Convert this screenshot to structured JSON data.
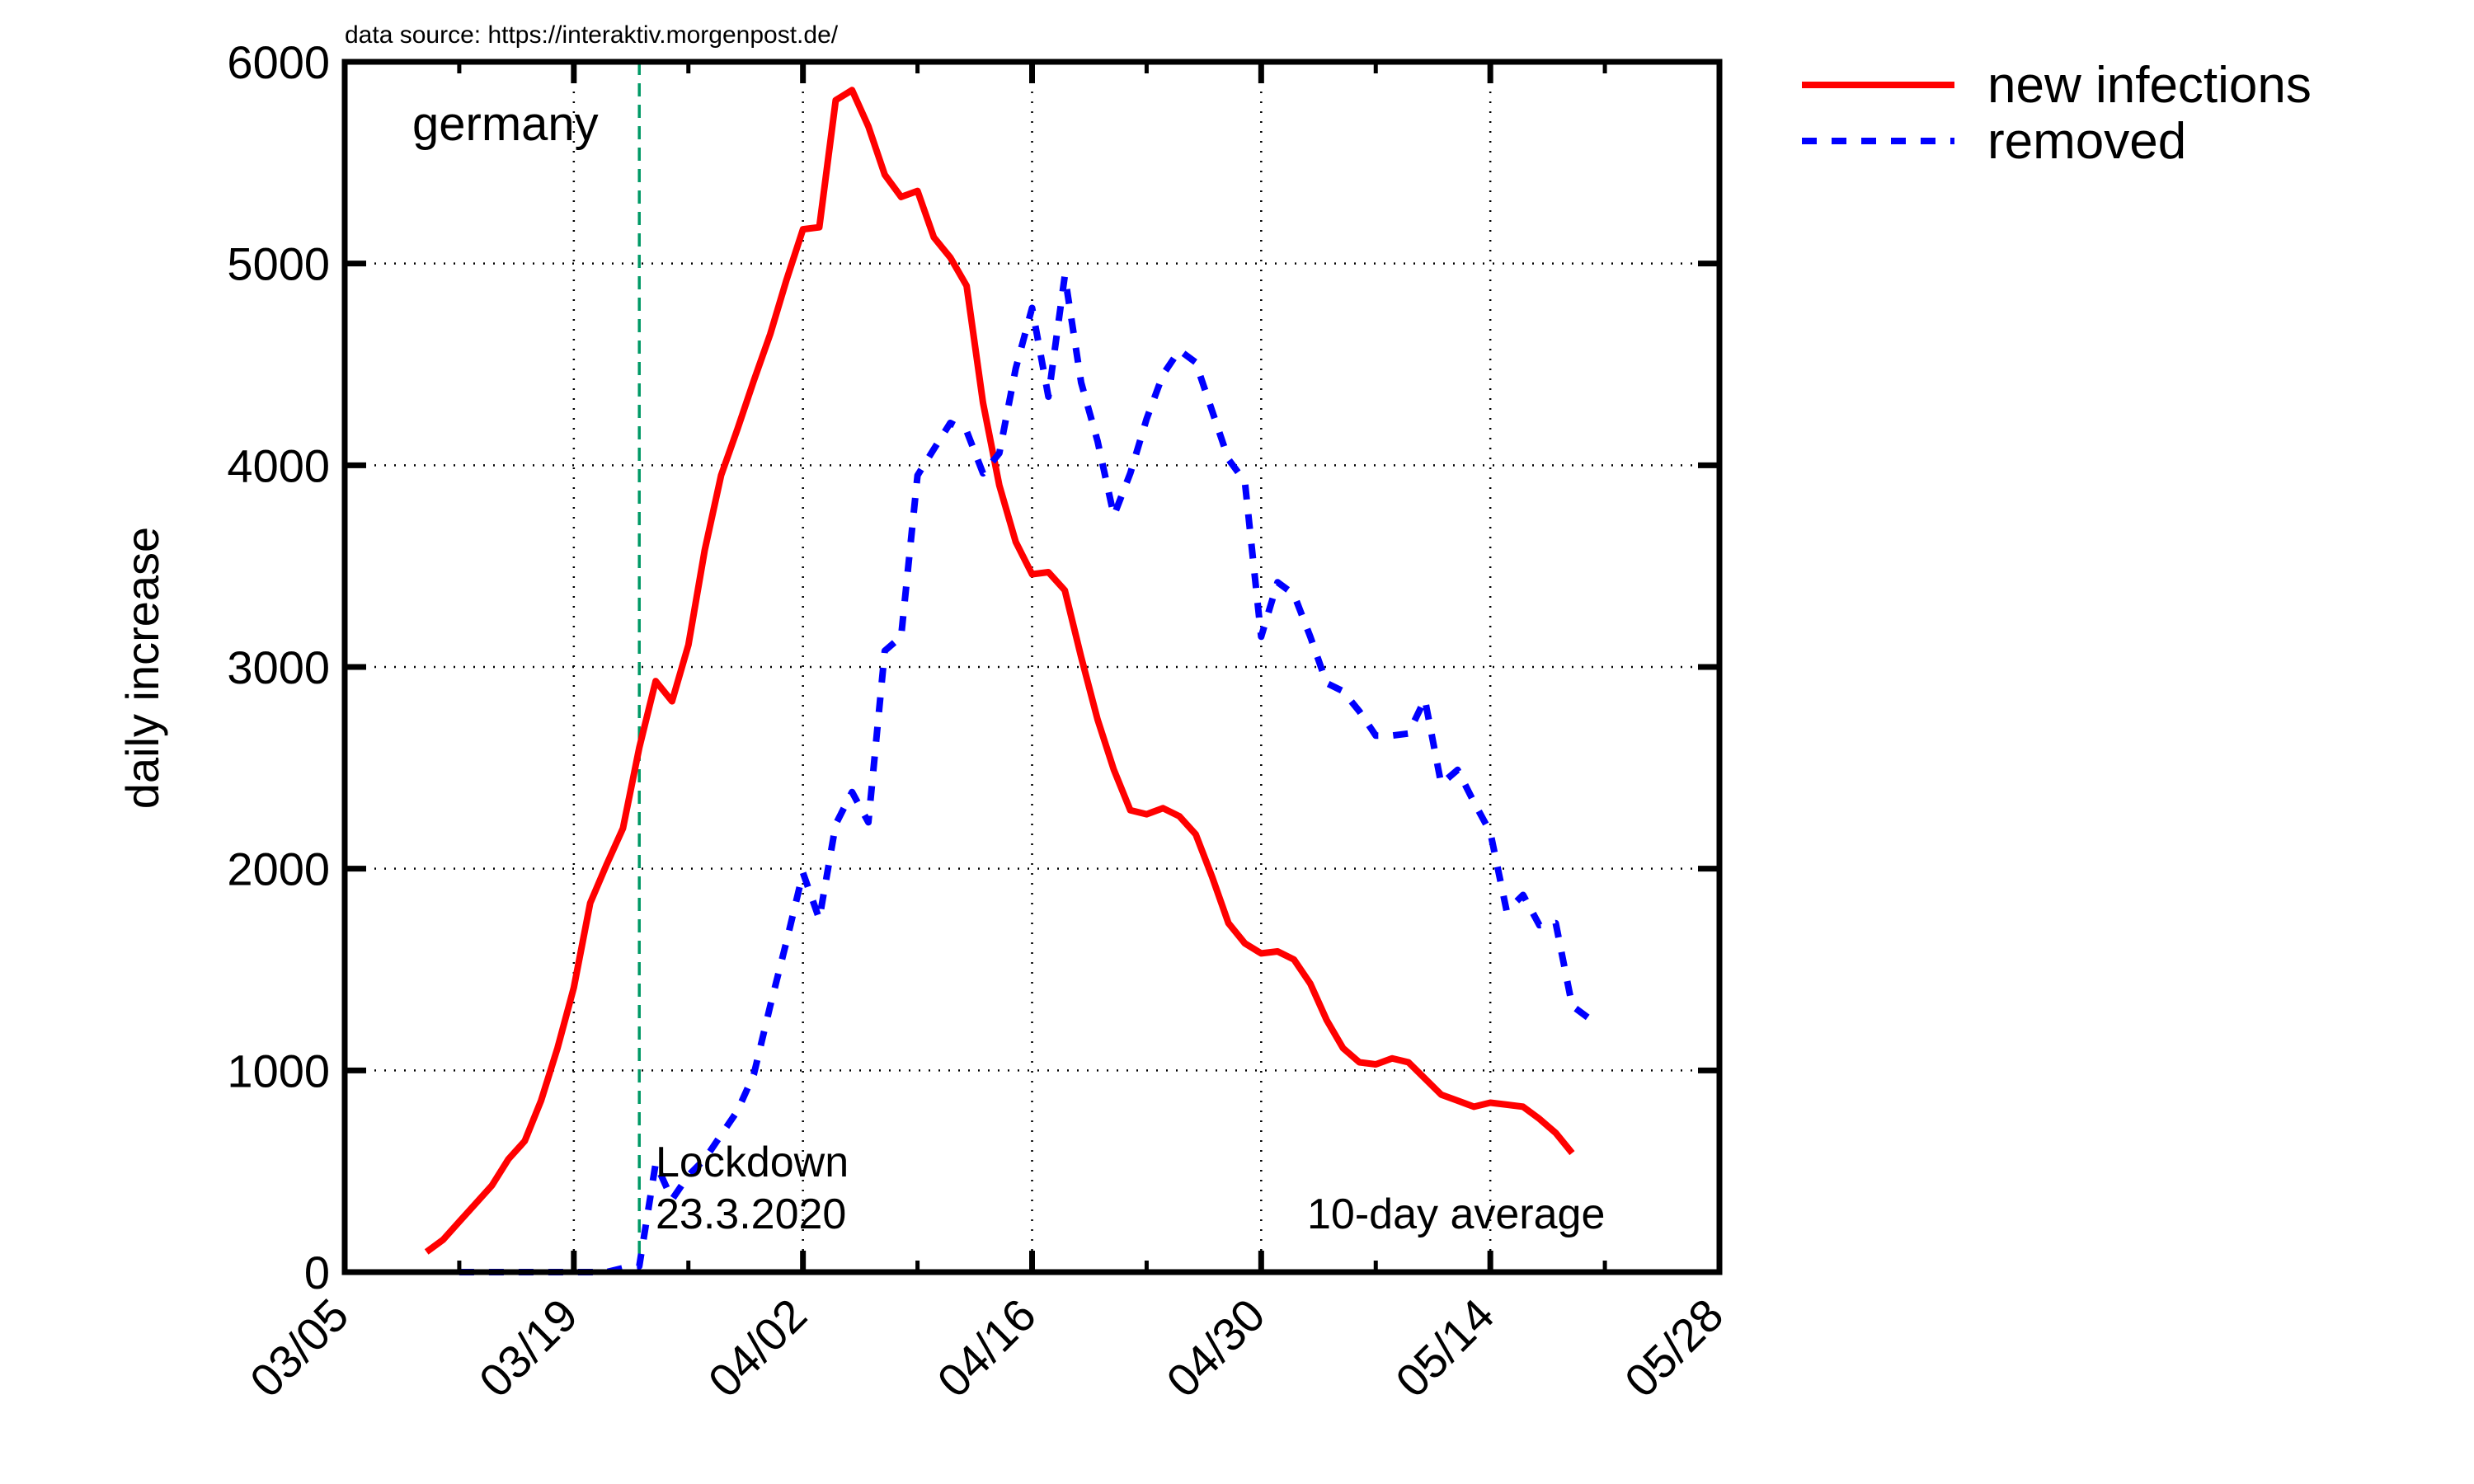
{
  "chart_data": {
    "type": "line",
    "title": "",
    "source_note": "data source: https://interaktiv.morgenpost.de/",
    "region_label": "germany",
    "average_note": "10-day average",
    "xlabel": "",
    "ylabel": "daily increase",
    "xlim": [
      "2020-03-05",
      "2020-05-28"
    ],
    "ylim": [
      0,
      6000
    ],
    "xticks": [
      "03/05",
      "03/19",
      "04/02",
      "04/16",
      "04/30",
      "05/14",
      "05/28"
    ],
    "yticks": [
      0,
      1000,
      2000,
      3000,
      4000,
      5000,
      6000
    ],
    "grid": true,
    "legend_position": "right, outside plot, top",
    "lockdown": {
      "date": "2020-03-23",
      "label_line1": "Lockdown",
      "label_line2": "23.3.2020",
      "color": "#009966"
    },
    "series": [
      {
        "name": "new infections",
        "color": "#ff0000",
        "style": "solid",
        "points": [
          [
            "2020-03-10",
            100
          ],
          [
            "2020-03-11",
            160
          ],
          [
            "2020-03-12",
            250
          ],
          [
            "2020-03-13",
            340
          ],
          [
            "2020-03-14",
            430
          ],
          [
            "2020-03-15",
            560
          ],
          [
            "2020-03-16",
            650
          ],
          [
            "2020-03-17",
            850
          ],
          [
            "2020-03-18",
            1110
          ],
          [
            "2020-03-19",
            1410
          ],
          [
            "2020-03-20",
            1830
          ],
          [
            "2020-03-21",
            2020
          ],
          [
            "2020-03-22",
            2200
          ],
          [
            "2020-03-23",
            2600
          ],
          [
            "2020-03-24",
            2930
          ],
          [
            "2020-03-25",
            2830
          ],
          [
            "2020-03-26",
            3110
          ],
          [
            "2020-03-27",
            3580
          ],
          [
            "2020-03-28",
            3950
          ],
          [
            "2020-03-29",
            4180
          ],
          [
            "2020-03-30",
            4420
          ],
          [
            "2020-03-31",
            4650
          ],
          [
            "2020-04-01",
            4920
          ],
          [
            "2020-04-02",
            5170
          ],
          [
            "2020-04-03",
            5180
          ],
          [
            "2020-04-04",
            5810
          ],
          [
            "2020-04-05",
            5860
          ],
          [
            "2020-04-06",
            5680
          ],
          [
            "2020-04-07",
            5440
          ],
          [
            "2020-04-08",
            5330
          ],
          [
            "2020-04-09",
            5360
          ],
          [
            "2020-04-10",
            5130
          ],
          [
            "2020-04-11",
            5030
          ],
          [
            "2020-04-12",
            4890
          ],
          [
            "2020-04-13",
            4310
          ],
          [
            "2020-04-14",
            3900
          ],
          [
            "2020-04-15",
            3620
          ],
          [
            "2020-04-16",
            3460
          ],
          [
            "2020-04-17",
            3470
          ],
          [
            "2020-04-18",
            3380
          ],
          [
            "2020-04-19",
            3050
          ],
          [
            "2020-04-20",
            2740
          ],
          [
            "2020-04-21",
            2490
          ],
          [
            "2020-04-22",
            2290
          ],
          [
            "2020-04-23",
            2270
          ],
          [
            "2020-04-24",
            2300
          ],
          [
            "2020-04-25",
            2260
          ],
          [
            "2020-04-26",
            2170
          ],
          [
            "2020-04-27",
            1960
          ],
          [
            "2020-04-28",
            1730
          ],
          [
            "2020-04-29",
            1630
          ],
          [
            "2020-04-30",
            1580
          ],
          [
            "2020-05-01",
            1590
          ],
          [
            "2020-05-02",
            1550
          ],
          [
            "2020-05-03",
            1430
          ],
          [
            "2020-05-04",
            1250
          ],
          [
            "2020-05-05",
            1110
          ],
          [
            "2020-05-06",
            1040
          ],
          [
            "2020-05-07",
            1030
          ],
          [
            "2020-05-08",
            1060
          ],
          [
            "2020-05-09",
            1040
          ],
          [
            "2020-05-10",
            960
          ],
          [
            "2020-05-11",
            880
          ],
          [
            "2020-05-12",
            850
          ],
          [
            "2020-05-13",
            820
          ],
          [
            "2020-05-14",
            840
          ],
          [
            "2020-05-15",
            830
          ],
          [
            "2020-05-16",
            820
          ],
          [
            "2020-05-17",
            760
          ],
          [
            "2020-05-18",
            690
          ],
          [
            "2020-05-19",
            590
          ]
        ]
      },
      {
        "name": "removed",
        "color": "#0000ff",
        "style": "dashed",
        "points": [
          [
            "2020-03-12",
            0
          ],
          [
            "2020-03-13",
            0
          ],
          [
            "2020-03-14",
            0
          ],
          [
            "2020-03-15",
            0
          ],
          [
            "2020-03-16",
            0
          ],
          [
            "2020-03-17",
            0
          ],
          [
            "2020-03-18",
            0
          ],
          [
            "2020-03-19",
            0
          ],
          [
            "2020-03-20",
            0
          ],
          [
            "2020-03-21",
            0
          ],
          [
            "2020-03-22",
            20
          ],
          [
            "2020-03-23",
            30
          ],
          [
            "2020-03-24",
            540
          ],
          [
            "2020-03-25",
            360
          ],
          [
            "2020-03-26",
            480
          ],
          [
            "2020-03-27",
            560
          ],
          [
            "2020-03-28",
            680
          ],
          [
            "2020-03-29",
            800
          ],
          [
            "2020-03-30",
            980
          ],
          [
            "2020-03-31",
            1320
          ],
          [
            "2020-04-01",
            1640
          ],
          [
            "2020-04-02",
            1980
          ],
          [
            "2020-04-03",
            1750
          ],
          [
            "2020-04-04",
            2220
          ],
          [
            "2020-04-05",
            2380
          ],
          [
            "2020-04-06",
            2230
          ],
          [
            "2020-04-07",
            3080
          ],
          [
            "2020-04-08",
            3150
          ],
          [
            "2020-04-09",
            3950
          ],
          [
            "2020-04-10",
            4080
          ],
          [
            "2020-04-11",
            4210
          ],
          [
            "2020-04-12",
            4170
          ],
          [
            "2020-04-13",
            3960
          ],
          [
            "2020-04-14",
            4060
          ],
          [
            "2020-04-15",
            4480
          ],
          [
            "2020-04-16",
            4780
          ],
          [
            "2020-04-17",
            4340
          ],
          [
            "2020-04-18",
            4940
          ],
          [
            "2020-04-19",
            4410
          ],
          [
            "2020-04-20",
            4120
          ],
          [
            "2020-04-21",
            3750
          ],
          [
            "2020-04-22",
            3960
          ],
          [
            "2020-04-23",
            4230
          ],
          [
            "2020-04-24",
            4450
          ],
          [
            "2020-04-25",
            4570
          ],
          [
            "2020-04-26",
            4510
          ],
          [
            "2020-04-27",
            4270
          ],
          [
            "2020-04-28",
            4030
          ],
          [
            "2020-04-29",
            3920
          ],
          [
            "2020-04-30",
            3150
          ],
          [
            "2020-05-01",
            3420
          ],
          [
            "2020-05-02",
            3360
          ],
          [
            "2020-05-03",
            3150
          ],
          [
            "2020-05-04",
            2920
          ],
          [
            "2020-05-05",
            2880
          ],
          [
            "2020-05-06",
            2780
          ],
          [
            "2020-05-07",
            2660
          ],
          [
            "2020-05-08",
            2660
          ],
          [
            "2020-05-09",
            2670
          ],
          [
            "2020-05-10",
            2840
          ],
          [
            "2020-05-11",
            2420
          ],
          [
            "2020-05-12",
            2490
          ],
          [
            "2020-05-13",
            2330
          ],
          [
            "2020-05-14",
            2180
          ],
          [
            "2020-05-15",
            1790
          ],
          [
            "2020-05-16",
            1870
          ],
          [
            "2020-05-17",
            1720
          ],
          [
            "2020-05-18",
            1730
          ],
          [
            "2020-05-19",
            1320
          ],
          [
            "2020-05-20",
            1260
          ]
        ]
      }
    ]
  }
}
